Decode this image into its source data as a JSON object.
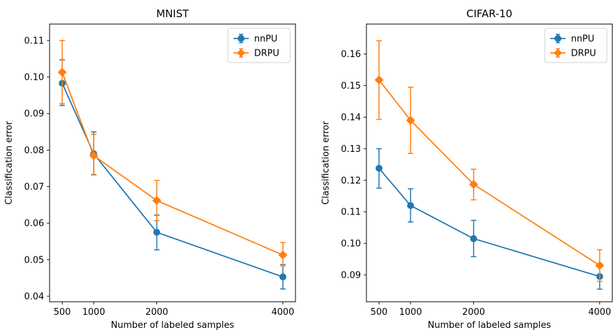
{
  "chart_data": [
    {
      "type": "line",
      "title": "MNIST",
      "xlabel": "Number of labeled samples",
      "ylabel": "Classification error",
      "x": [
        500,
        1000,
        2000,
        4000
      ],
      "xticks": [
        500,
        1000,
        2000,
        4000
      ],
      "xlim": [
        300,
        4200
      ],
      "yticks": [
        0.04,
        0.05,
        0.06,
        0.07,
        0.08,
        0.09,
        0.1,
        0.11
      ],
      "ytick_labels": [
        "0.04",
        "0.05",
        "0.06",
        "0.07",
        "0.08",
        "0.09",
        "0.10",
        "0.11"
      ],
      "ylim": [
        0.0385,
        0.1145
      ],
      "grid": false,
      "legend_position": "top-right",
      "series": [
        {
          "name": "nnPU",
          "color": "#1f77b4",
          "marker": "circle",
          "values": [
            0.0983,
            0.079,
            0.0575,
            0.0453
          ],
          "err_low": [
            0.0922,
            0.0733,
            0.0527,
            0.042
          ],
          "err_high": [
            0.1047,
            0.085,
            0.0622,
            0.0487
          ]
        },
        {
          "name": "DRPU",
          "color": "#ff7f0e",
          "marker": "diamond",
          "values": [
            0.1013,
            0.0785,
            0.0662,
            0.0513
          ],
          "err_low": [
            0.0927,
            0.0732,
            0.0607,
            0.0483
          ],
          "err_high": [
            0.11,
            0.0843,
            0.0717,
            0.0547
          ]
        }
      ]
    },
    {
      "type": "line",
      "title": "CIFAR-10",
      "xlabel": "Number of labeled samples",
      "ylabel": "Classification error",
      "x": [
        500,
        1000,
        2000,
        4000
      ],
      "xticks": [
        500,
        1000,
        2000,
        4000
      ],
      "xlim": [
        300,
        4200
      ],
      "yticks": [
        0.09,
        0.1,
        0.11,
        0.12,
        0.13,
        0.14,
        0.15,
        0.16
      ],
      "ytick_labels": [
        "0.09",
        "0.10",
        "0.11",
        "0.12",
        "0.13",
        "0.14",
        "0.15",
        "0.16"
      ],
      "ylim": [
        0.0815,
        0.1695
      ],
      "grid": false,
      "legend_position": "top-right",
      "series": [
        {
          "name": "nnPU",
          "color": "#1f77b4",
          "marker": "circle",
          "values": [
            0.1238,
            0.112,
            0.1015,
            0.0895
          ],
          "err_low": [
            0.1175,
            0.1068,
            0.0958,
            0.0855
          ],
          "err_high": [
            0.13,
            0.1173,
            0.1073,
            0.0935
          ]
        },
        {
          "name": "DRPU",
          "color": "#ff7f0e",
          "marker": "diamond",
          "values": [
            0.1518,
            0.139,
            0.1187,
            0.093
          ],
          "err_low": [
            0.1393,
            0.1285,
            0.1138,
            0.088
          ],
          "err_high": [
            0.1642,
            0.1495,
            0.1235,
            0.098
          ]
        }
      ]
    }
  ]
}
